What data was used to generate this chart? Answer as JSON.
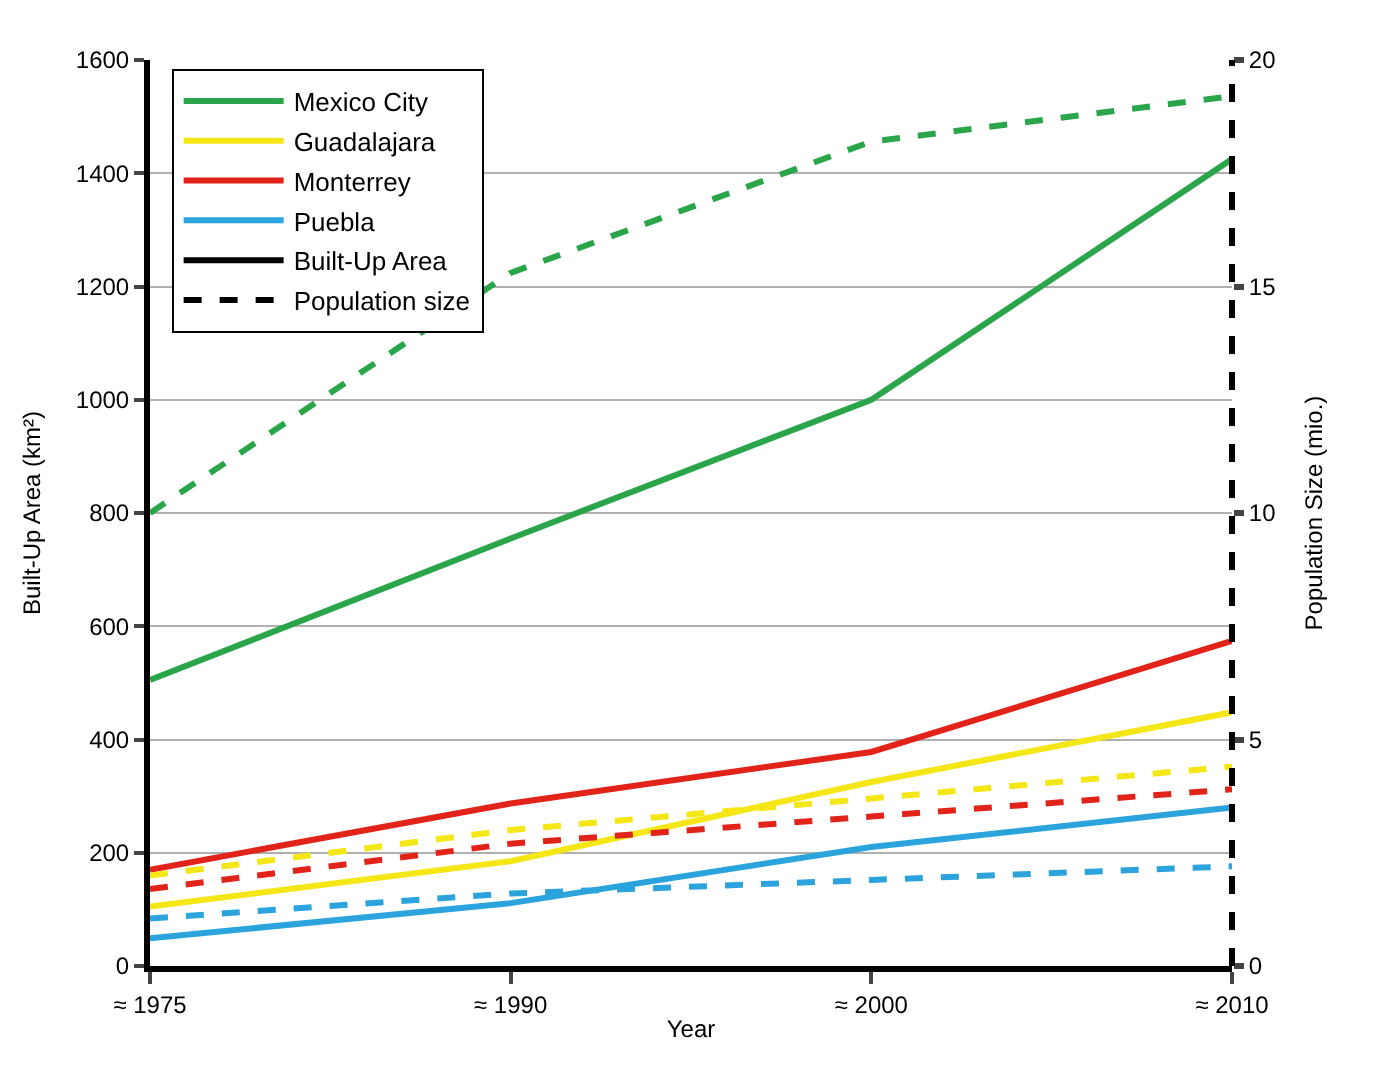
{
  "chart_data": {
    "type": "line",
    "xlabel": "Year",
    "ylabel": "Built-Up Area (km²)",
    "y2label": "Population Size (mio.)",
    "categories": [
      "≈ 1975",
      "≈ 1990",
      "≈ 2000",
      "≈ 2010"
    ],
    "ylim": [
      0,
      1600
    ],
    "yticks": [
      0,
      200,
      400,
      600,
      800,
      1000,
      1200,
      1400,
      1600
    ],
    "y2lim": [
      0,
      20
    ],
    "y2ticks": [
      0,
      5,
      10,
      15,
      20
    ],
    "grid": "y",
    "legend": "top left",
    "marker": "none",
    "series": [
      {
        "name": "Mexico City",
        "color": "#2aa54a",
        "values": [
          505,
          755,
          1000,
          1425
        ],
        "line_style": "solid"
      },
      {
        "name": "Guadalajara",
        "color": "#f5e616",
        "values": [
          105,
          185,
          325,
          448
        ],
        "line_style": "solid"
      },
      {
        "name": "Monterrey",
        "color": "#e2231a",
        "values": [
          170,
          287,
          378,
          574
        ],
        "line_style": "solid"
      },
      {
        "name": "Puebla",
        "color": "#2ba3dc",
        "values": [
          49,
          111,
          210,
          280
        ],
        "line_style": "solid"
      },
      {
        "name": "Built-Up Area",
        "color": "#000000",
        "values": [
          null,
          null,
          null,
          null
        ],
        "line_style": "solid"
      },
      {
        "name": "Population size",
        "color": "#000000",
        "values": [
          null,
          null,
          null,
          null
        ],
        "line_style": "dashed"
      },
      {
        "color": "#2aa54a",
        "values": [
          10.0,
          15.3,
          18.2,
          19.2
        ],
        "axis": "y2",
        "line_style": "dashed"
      },
      {
        "color": "#f5e616",
        "values": [
          2.0,
          3.0,
          3.7,
          4.4
        ],
        "axis": "y2",
        "line_style": "dashed"
      },
      {
        "color": "#e2231a",
        "values": [
          1.7,
          2.7,
          3.3,
          3.9
        ],
        "axis": "y2",
        "line_style": "dashed"
      },
      {
        "color": "#2ba3dc",
        "values": [
          1.05,
          1.6,
          1.9,
          2.2
        ],
        "axis": "y2",
        "line_style": "dashed"
      }
    ]
  }
}
